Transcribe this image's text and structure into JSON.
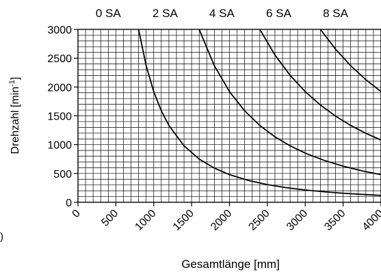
{
  "chart_data": {
    "type": "line",
    "xlabel": "Gesamtlänge [mm]",
    "ylabel": "Drehzahl [min-1]",
    "ylabel_main": "Drehzahl [min",
    "ylabel_sup": "-1",
    "ylabel_end": "]",
    "xlim": [
      0,
      4000
    ],
    "ylim": [
      0,
      3000
    ],
    "x_ticks": [
      0,
      500,
      1000,
      1500,
      2000,
      2500,
      3000,
      3500,
      4000
    ],
    "x_tick_labels": [
      "0",
      "500",
      "1000",
      "1500",
      "2000",
      "2500",
      "3000",
      "3500",
      "4000"
    ],
    "y_ticks": [
      0,
      500,
      1000,
      1500,
      2000,
      2500,
      3000
    ],
    "y_tick_labels": [
      "0",
      "500",
      "1000",
      "1500",
      "2000",
      "2500",
      "3000"
    ],
    "grid": true,
    "top_labels": [
      {
        "text": "0 SA",
        "x": 400
      },
      {
        "text": "2 SA",
        "x": 1150
      },
      {
        "text": "4 SA",
        "x": 1900
      },
      {
        "text": "6 SA",
        "x": 2650
      },
      {
        "text": "8 SA",
        "x": 3400
      }
    ],
    "series": [
      {
        "x": [
          800,
          900,
          1000,
          1100,
          1200,
          1400,
          1600,
          1800,
          2000,
          2250,
          2500,
          2750,
          3000,
          3250,
          3500,
          3750,
          4000
        ],
        "y": [
          3000,
          2370,
          1920,
          1587,
          1333,
          980,
          750,
          593,
          480,
          379,
          307,
          254,
          213,
          182,
          157,
          137,
          120
        ]
      },
      {
        "x": [
          1600,
          1800,
          2000,
          2200,
          2400,
          2600,
          2800,
          3000,
          3250,
          3500,
          3750,
          4000
        ],
        "y": [
          3000,
          2370,
          1920,
          1587,
          1333,
          1136,
          980,
          853,
          727,
          627,
          546,
          480
        ]
      },
      {
        "x": [
          2400,
          2600,
          2800,
          3000,
          3200,
          3400,
          3600,
          3800,
          4000
        ],
        "y": [
          3000,
          2556,
          2204,
          1920,
          1688,
          1495,
          1333,
          1197,
          1080
        ]
      },
      {
        "x": [
          3200,
          3400,
          3600,
          3800,
          4000
        ],
        "y": [
          3000,
          2657,
          2370,
          2127,
          1920
        ]
      }
    ]
  },
  "stray_text": ")"
}
